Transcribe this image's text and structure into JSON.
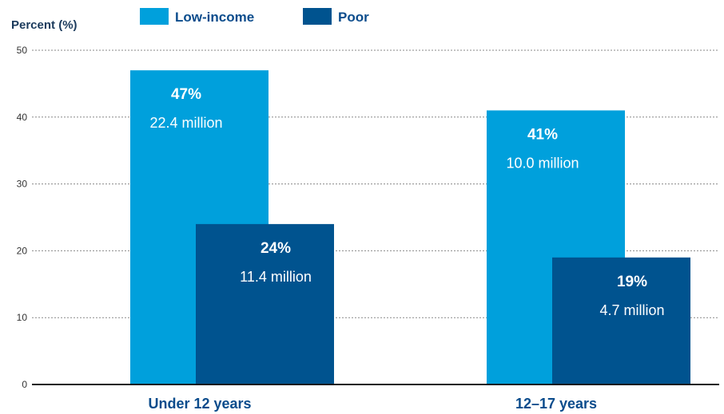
{
  "chart_data": {
    "type": "bar",
    "title": "",
    "ylabel": "Percent (%)",
    "xlabel": "",
    "categories": [
      "Under 12 years",
      "12–17 years"
    ],
    "ylim": [
      0,
      50
    ],
    "yticks": [
      0,
      10,
      20,
      30,
      40,
      50
    ],
    "grid": true,
    "legend_position": "top",
    "series": [
      {
        "name": "Low-income",
        "color": "#00a0dc",
        "values": [
          47,
          41
        ],
        "labels": [
          "47%",
          "41%"
        ],
        "sublabels": [
          "22.4 million",
          "10.0 million"
        ]
      },
      {
        "name": "Poor",
        "color": "#00538f",
        "values": [
          24,
          19
        ],
        "labels": [
          "24%",
          "19%"
        ],
        "sublabels": [
          "11.4 million",
          "4.7 million"
        ]
      }
    ]
  }
}
